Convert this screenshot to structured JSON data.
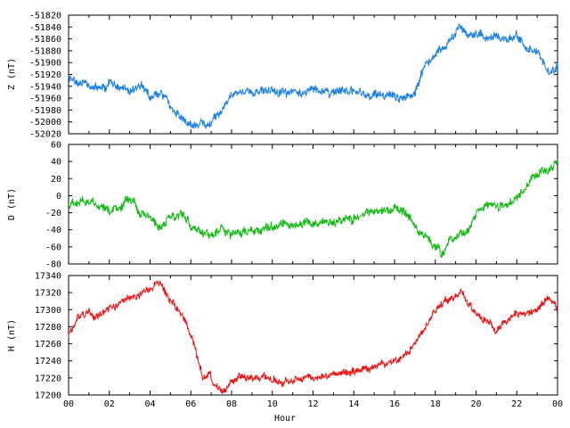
{
  "chart_data": [
    {
      "type": "line",
      "ylabel": "Z (nT)",
      "color": "#1a80e6",
      "ylim": [
        -52020,
        -51820
      ],
      "yticks": [
        -51820,
        -51840,
        -51860,
        -51880,
        -51900,
        -51920,
        -51940,
        -51960,
        -51980,
        -52000,
        -52020
      ],
      "xlim": [
        0,
        24
      ],
      "series": [
        {
          "x": [
            0,
            0.5,
            1,
            1.5,
            2,
            2.5,
            3,
            3.5,
            4,
            4.5,
            5,
            5.5,
            6,
            6.5,
            6.8,
            7.2,
            7.5,
            8,
            9,
            10,
            11,
            12,
            13,
            14,
            15,
            16,
            16.5,
            17,
            17.5,
            18,
            18.5,
            19,
            19.3,
            19.6,
            20,
            20.5,
            21,
            21.5,
            22,
            22.5,
            23,
            23.5,
            24
          ],
          "values": [
            -51928,
            -51935,
            -51940,
            -51942,
            -51937,
            -51940,
            -51943,
            -51938,
            -51955,
            -51950,
            -51972,
            -51992,
            -52003,
            -52000,
            -52005,
            -51990,
            -51980,
            -51952,
            -51950,
            -51948,
            -51950,
            -51950,
            -51948,
            -51950,
            -51955,
            -51957,
            -51958,
            -51948,
            -51905,
            -51885,
            -51870,
            -51848,
            -51843,
            -51855,
            -51852,
            -51860,
            -51852,
            -51860,
            -51856,
            -51875,
            -51880,
            -51915,
            -51905
          ]
        }
      ]
    },
    {
      "type": "line",
      "ylabel": "D (nT)",
      "color": "#11bb11",
      "ylim": [
        -80,
        60
      ],
      "yticks": [
        60,
        40,
        20,
        0,
        -20,
        -40,
        -60,
        -80
      ],
      "xlim": [
        0,
        24
      ],
      "series": [
        {
          "x": [
            0,
            0.5,
            1,
            1.5,
            2,
            2.5,
            2.8,
            3.2,
            3.5,
            4,
            4.5,
            5,
            5.5,
            6,
            6.5,
            7,
            7.5,
            8,
            9,
            10,
            11,
            12,
            13,
            14,
            15,
            16,
            16.5,
            17,
            17.5,
            18,
            18.3,
            18.6,
            19,
            19.5,
            20,
            20.5,
            21,
            21.5,
            22,
            22.5,
            23,
            23.5,
            24
          ],
          "values": [
            -12,
            -10,
            -8,
            -12,
            -18,
            -20,
            -2,
            -8,
            -22,
            -25,
            -40,
            -25,
            -20,
            -35,
            -40,
            -48,
            -38,
            -45,
            -40,
            -35,
            -34,
            -32,
            -32,
            -25,
            -20,
            -15,
            -20,
            -35,
            -45,
            -60,
            -68,
            -55,
            -50,
            -42,
            -20,
            -10,
            -12,
            -8,
            -5,
            10,
            25,
            30,
            40
          ]
        }
      ]
    },
    {
      "type": "line",
      "ylabel": "H (nT)",
      "xlabel": "Hour",
      "color": "#ee1111",
      "ylim": [
        17200,
        17340
      ],
      "yticks": [
        17340,
        17320,
        17300,
        17280,
        17260,
        17240,
        17220,
        17200
      ],
      "xlim": [
        0,
        24
      ],
      "xticks": [
        "00",
        "02",
        "04",
        "06",
        "08",
        "10",
        "12",
        "14",
        "16",
        "18",
        "20",
        "22",
        "00"
      ],
      "series": [
        {
          "x": [
            0,
            0.5,
            1,
            1.5,
            2,
            2.5,
            3,
            3.5,
            4,
            4.3,
            4.6,
            5,
            5.5,
            6,
            6.3,
            6.6,
            6.9,
            7.2,
            7.5,
            8,
            8.5,
            9,
            10,
            11,
            12,
            13,
            14,
            15,
            16,
            16.5,
            17,
            17.5,
            18,
            18.5,
            19,
            19.3,
            19.6,
            20,
            20.5,
            21,
            21.5,
            22,
            22.5,
            23,
            23.5,
            24
          ],
          "values": [
            17268,
            17290,
            17295,
            17292,
            17302,
            17308,
            17315,
            17318,
            17325,
            17332,
            17330,
            17310,
            17295,
            17270,
            17245,
            17218,
            17228,
            17210,
            17205,
            17215,
            17222,
            17222,
            17218,
            17216,
            17220,
            17224,
            17228,
            17232,
            17238,
            17245,
            17262,
            17280,
            17300,
            17312,
            17315,
            17322,
            17308,
            17295,
            17288,
            17275,
            17285,
            17295,
            17295,
            17300,
            17315,
            17300
          ]
        }
      ]
    }
  ]
}
